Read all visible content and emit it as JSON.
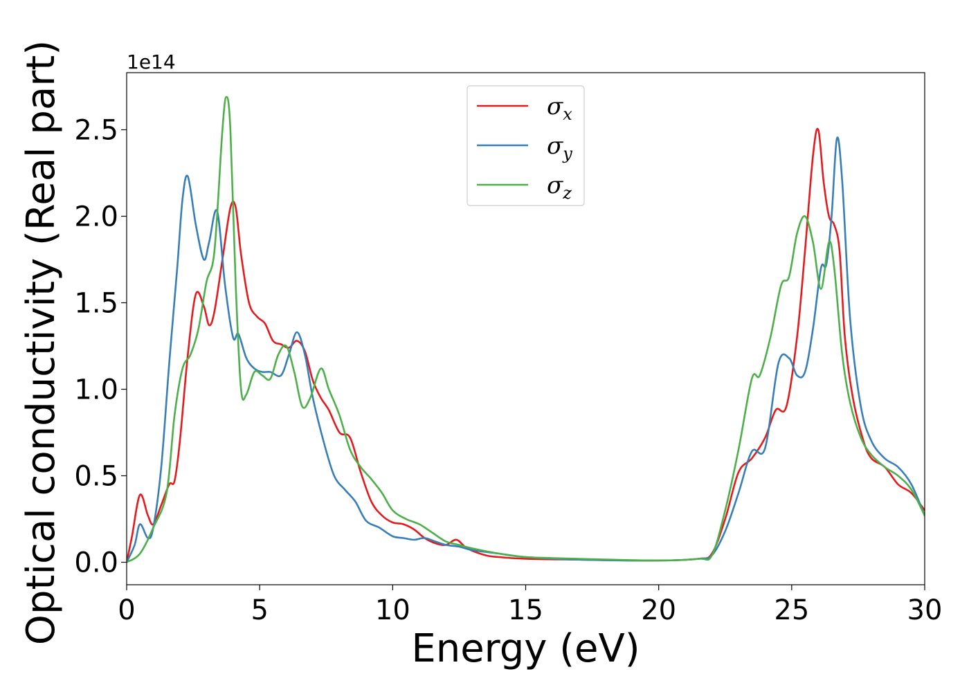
{
  "chart_data": {
    "type": "line",
    "title": "",
    "xlabel": "Energy (eV)",
    "ylabel": "Optical conductivity (Real part)",
    "y_offset_label": "1e14",
    "xlim": [
      0,
      30
    ],
    "ylim": [
      -0.13,
      2.83
    ],
    "xticks": [
      0,
      5,
      10,
      15,
      20,
      25,
      30
    ],
    "xtick_labels": [
      "0",
      "5",
      "10",
      "15",
      "20",
      "25",
      "30"
    ],
    "yticks": [
      0.0,
      0.5,
      1.0,
      1.5,
      2.0,
      2.5
    ],
    "ytick_labels": [
      "0.0",
      "0.5",
      "1.0",
      "1.5",
      "2.0",
      "2.5"
    ],
    "grid": false,
    "legend_position": "top-center",
    "series": [
      {
        "name": "σx",
        "legend_symbol": "σ",
        "legend_sub": "x",
        "color": "#e41a1c",
        "x": [
          0,
          0.2,
          0.5,
          0.8,
          1.0,
          1.3,
          1.6,
          1.8,
          2.0,
          2.3,
          2.6,
          2.9,
          3.1,
          3.3,
          3.6,
          3.9,
          4.1,
          4.3,
          4.6,
          4.9,
          5.2,
          5.5,
          5.8,
          6.1,
          6.4,
          6.7,
          7.0,
          7.3,
          7.6,
          8.0,
          8.4,
          8.8,
          9.2,
          9.6,
          10.0,
          10.4,
          10.8,
          11.2,
          11.6,
          12.0,
          12.4,
          12.8,
          13.5,
          14.0,
          15.0,
          17.0,
          20.0,
          21.5,
          22.0,
          22.5,
          23.0,
          23.5,
          24.0,
          24.4,
          24.8,
          25.2,
          25.5,
          25.8,
          26.0,
          26.2,
          26.4,
          26.6,
          26.8,
          27.0,
          27.3,
          27.7,
          28.0,
          28.5,
          29.0,
          29.5,
          30.0
        ],
        "values": [
          0.0,
          0.15,
          0.39,
          0.27,
          0.22,
          0.33,
          0.45,
          0.47,
          0.7,
          1.2,
          1.55,
          1.48,
          1.37,
          1.45,
          1.75,
          2.05,
          2.05,
          1.78,
          1.5,
          1.42,
          1.38,
          1.28,
          1.26,
          1.24,
          1.28,
          1.22,
          1.05,
          0.95,
          0.88,
          0.75,
          0.72,
          0.52,
          0.35,
          0.27,
          0.23,
          0.22,
          0.19,
          0.14,
          0.11,
          0.1,
          0.13,
          0.08,
          0.04,
          0.03,
          0.02,
          0.015,
          0.01,
          0.02,
          0.05,
          0.25,
          0.52,
          0.6,
          0.72,
          0.88,
          0.9,
          1.3,
          1.8,
          2.35,
          2.5,
          2.2,
          2.0,
          1.95,
          1.8,
          1.3,
          0.95,
          0.7,
          0.6,
          0.55,
          0.45,
          0.4,
          0.3
        ]
      },
      {
        "name": "σy",
        "legend_symbol": "σ",
        "legend_sub": "y",
        "color": "#377eb8",
        "x": [
          0,
          0.3,
          0.5,
          0.8,
          1.0,
          1.3,
          1.6,
          1.9,
          2.1,
          2.3,
          2.6,
          2.9,
          3.1,
          3.4,
          3.7,
          4.0,
          4.2,
          4.5,
          4.8,
          5.1,
          5.4,
          5.8,
          6.1,
          6.4,
          6.7,
          7.0,
          7.4,
          7.8,
          8.2,
          8.6,
          9.0,
          9.5,
          10.0,
          10.4,
          10.8,
          11.2,
          11.6,
          12.0,
          12.5,
          13.0,
          14.0,
          15.0,
          17.0,
          20.0,
          21.5,
          22.0,
          22.5,
          23.0,
          23.5,
          24.0,
          24.5,
          24.9,
          25.2,
          25.5,
          25.8,
          26.1,
          26.3,
          26.5,
          26.7,
          26.9,
          27.2,
          27.6,
          28.0,
          28.5,
          29.0,
          29.5,
          30.0
        ],
        "values": [
          0.0,
          0.1,
          0.22,
          0.14,
          0.2,
          0.55,
          1.15,
          1.7,
          2.1,
          2.23,
          1.95,
          1.75,
          1.85,
          2.03,
          1.6,
          1.3,
          1.32,
          1.18,
          1.12,
          1.1,
          1.1,
          1.08,
          1.2,
          1.33,
          1.2,
          0.95,
          0.7,
          0.5,
          0.42,
          0.35,
          0.24,
          0.2,
          0.15,
          0.14,
          0.13,
          0.14,
          0.12,
          0.1,
          0.09,
          0.07,
          0.05,
          0.03,
          0.015,
          0.01,
          0.02,
          0.04,
          0.18,
          0.4,
          0.64,
          0.66,
          1.15,
          1.18,
          1.08,
          1.1,
          1.35,
          1.7,
          1.72,
          2.0,
          2.45,
          2.2,
          1.4,
          0.9,
          0.7,
          0.6,
          0.55,
          0.45,
          0.27
        ]
      },
      {
        "name": "σz",
        "legend_symbol": "σ",
        "legend_sub": "z",
        "color": "#4daf4a",
        "x": [
          0,
          0.5,
          1.0,
          1.5,
          1.8,
          2.1,
          2.4,
          2.7,
          3.0,
          3.3,
          3.6,
          3.75,
          3.9,
          4.1,
          4.3,
          4.5,
          4.8,
          5.1,
          5.4,
          5.7,
          6.0,
          6.3,
          6.6,
          6.9,
          7.3,
          7.6,
          8.0,
          8.4,
          8.8,
          9.2,
          9.6,
          10.0,
          10.5,
          11.0,
          11.5,
          12.0,
          12.5,
          13.0,
          14.0,
          15.0,
          17.0,
          20.0,
          21.5,
          22.0,
          22.5,
          23.0,
          23.5,
          23.8,
          24.2,
          24.6,
          24.9,
          25.2,
          25.5,
          25.8,
          26.1,
          26.4,
          26.6,
          26.9,
          27.2,
          27.6,
          28.0,
          28.5,
          29.0,
          29.5,
          30.0
        ],
        "values": [
          0.0,
          0.05,
          0.2,
          0.4,
          0.85,
          1.12,
          1.2,
          1.35,
          1.62,
          1.8,
          2.5,
          2.69,
          2.5,
          1.6,
          1.0,
          0.97,
          1.1,
          1.08,
          1.06,
          1.2,
          1.25,
          1.1,
          0.9,
          0.95,
          1.12,
          1.0,
          0.85,
          0.65,
          0.55,
          0.48,
          0.4,
          0.3,
          0.25,
          0.22,
          0.17,
          0.12,
          0.1,
          0.08,
          0.05,
          0.03,
          0.02,
          0.01,
          0.02,
          0.04,
          0.3,
          0.65,
          1.06,
          1.08,
          1.3,
          1.6,
          1.65,
          1.9,
          2.0,
          1.85,
          1.58,
          1.85,
          1.7,
          1.2,
          0.92,
          0.72,
          0.62,
          0.55,
          0.5,
          0.42,
          0.27
        ]
      }
    ]
  }
}
